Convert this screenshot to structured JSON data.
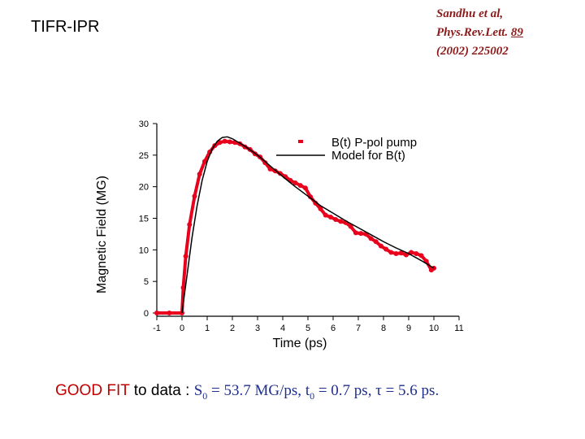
{
  "header": {
    "org": "TIFR-IPR"
  },
  "reference": {
    "line1": "Sandhu et al,",
    "line2a": "Phys.Rev.Lett. ",
    "line2b": "89",
    "line3": "(2002) 225002"
  },
  "caption": {
    "highlight": "GOOD FIT",
    "text": " to data : ",
    "s_sym": "S",
    "s_sub": "0",
    "s_val": " = 53.7 MG/ps, ",
    "t_sym": "t",
    "t_sub": "0",
    "t_val": " = 0.7 ps, ",
    "tau": "τ = 5.6 ps."
  },
  "colors": {
    "data": "#e8001c",
    "model": "#000000",
    "ref": "#8b1a1a",
    "caption_eq": "#1f2f8f",
    "highlight": "#c00000"
  },
  "chart_data": {
    "type": "line",
    "title": "",
    "xlabel": "Time (ps)",
    "ylabel": "Magnetic Field (MG)",
    "xlim": [
      -1,
      11
    ],
    "ylim": [
      0,
      30
    ],
    "xticks": [
      -1,
      0,
      1,
      2,
      3,
      4,
      5,
      6,
      7,
      8,
      9,
      10,
      11
    ],
    "yticks": [
      0,
      5,
      10,
      15,
      20,
      25,
      30
    ],
    "legend": {
      "placement": "top-right",
      "entries": [
        "B(t) P-pol pump",
        "Model for B(t)"
      ]
    },
    "series": [
      {
        "name": "B(t) P-pol pump",
        "style": "markers",
        "x": [
          -1,
          -0.5,
          0,
          0.05,
          0.15,
          0.3,
          0.5,
          0.7,
          0.9,
          1.1,
          1.3,
          1.5,
          1.7,
          1.9,
          2.1,
          2.3,
          2.5,
          2.7,
          2.9,
          3.1,
          3.3,
          3.5,
          3.7,
          3.9,
          4.1,
          4.3,
          4.5,
          4.7,
          4.9,
          5.1,
          5.3,
          5.5,
          5.7,
          5.9,
          6.1,
          6.3,
          6.5,
          6.7,
          6.9,
          7.1,
          7.3,
          7.5,
          7.7,
          7.9,
          8.1,
          8.3,
          8.5,
          8.7,
          8.9,
          9.1,
          9.3,
          9.5,
          9.7,
          9.9,
          10
        ],
        "y": [
          0,
          0,
          0,
          4,
          9,
          14,
          18.5,
          22,
          24,
          25.5,
          26.5,
          27,
          27.2,
          27.1,
          27,
          26.8,
          26.3,
          25.9,
          25.2,
          24.7,
          23.8,
          22.8,
          22.5,
          22.1,
          21.6,
          21,
          20.6,
          20.2,
          19.8,
          18.4,
          17.4,
          16.5,
          15.5,
          15.2,
          14.8,
          14.5,
          14.3,
          13.7,
          12.7,
          12.6,
          12.5,
          11.8,
          11.3,
          10.6,
          10.1,
          9.6,
          9.4,
          9.5,
          9.2,
          9.6,
          9.4,
          9.1,
          8.2,
          6.8,
          7.1
        ]
      },
      {
        "name": "Model for B(t)",
        "style": "line",
        "x": [
          0,
          0.2,
          0.4,
          0.6,
          0.8,
          1.0,
          1.2,
          1.4,
          1.6,
          1.8,
          2.0,
          2.5,
          3.0,
          3.5,
          4.0,
          4.5,
          5.0,
          5.5,
          6.0,
          6.5,
          7.0,
          7.5,
          8.0,
          8.5,
          9.0,
          9.5,
          10.0
        ],
        "y": [
          0,
          6,
          12,
          17,
          21,
          24,
          26,
          27.2,
          27.8,
          27.9,
          27.6,
          26.4,
          25.0,
          23.3,
          21.6,
          20.0,
          18.5,
          17.0,
          15.8,
          14.6,
          13.5,
          12.4,
          11.3,
          10.3,
          9.4,
          8.3,
          7.1
        ]
      }
    ]
  }
}
